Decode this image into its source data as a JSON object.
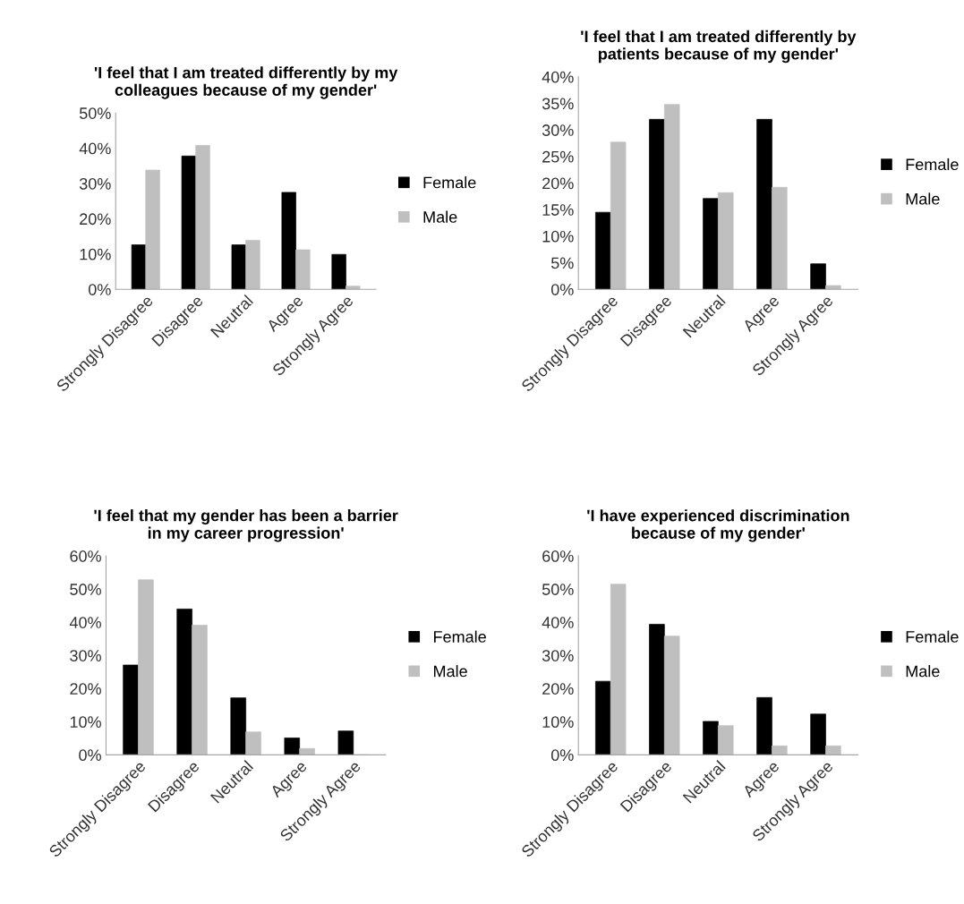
{
  "chart_data": [
    {
      "type": "bar",
      "title": "'I feel that I am treated differently by my colleagues because of my gender'",
      "categories": [
        "Strongly Disagree",
        "Disagree",
        "Neutral",
        "Agree",
        "Strongly Agree"
      ],
      "series": [
        {
          "name": "Female",
          "color": "#000000",
          "values": [
            12.6,
            37.8,
            12.6,
            27.5,
            9.9
          ]
        },
        {
          "name": "Male",
          "color": "#bfbfbf",
          "values": [
            33.8,
            40.8,
            13.9,
            11.2,
            0.9
          ]
        }
      ],
      "ylim": [
        0,
        50
      ],
      "yticks": [
        {
          "value": 0,
          "label": "0%"
        },
        {
          "value": 10,
          "label": "10%"
        },
        {
          "value": 20,
          "label": "20%"
        },
        {
          "value": 30,
          "label": "30%"
        },
        {
          "value": 40,
          "label": "40%"
        },
        {
          "value": 50,
          "label": "50%"
        }
      ],
      "grid": false,
      "legend": "right"
    },
    {
      "type": "bar",
      "title": "'I feel that I am treated differently by patients because of my gender'",
      "categories": [
        "Strongly Disagree",
        "Disagree",
        "Neutral",
        "Agree",
        "Strongly Agree"
      ],
      "series": [
        {
          "name": "Female",
          "color": "#000000",
          "values": [
            14.5,
            32.0,
            17.1,
            32.0,
            4.8
          ]
        },
        {
          "name": "Male",
          "color": "#bfbfbf",
          "values": [
            27.7,
            34.8,
            18.2,
            19.2,
            0.7
          ]
        }
      ],
      "ylim": [
        0,
        40
      ],
      "yticks": [
        {
          "value": 0,
          "label": "0%"
        },
        {
          "value": 5,
          "label": "5%"
        },
        {
          "value": 10,
          "label": "10%"
        },
        {
          "value": 15,
          "label": "15%"
        },
        {
          "value": 20,
          "label": "20%"
        },
        {
          "value": 25,
          "label": "25%"
        },
        {
          "value": 30,
          "label": "30%"
        },
        {
          "value": 35,
          "label": "35%"
        },
        {
          "value": 40,
          "label": "40%"
        }
      ],
      "grid": false,
      "legend": "right"
    },
    {
      "type": "bar",
      "title": "'I feel that my gender has been a barrier in my career progression'",
      "categories": [
        "Strongly Disagree",
        "Disagree",
        "Neutral",
        "Agree",
        "Strongly Agree"
      ],
      "series": [
        {
          "name": "Female",
          "color": "#000000",
          "values": [
            27.1,
            44.0,
            17.2,
            5.1,
            7.2
          ]
        },
        {
          "name": "Male",
          "color": "#bfbfbf",
          "values": [
            52.8,
            39.1,
            6.9,
            1.9,
            0
          ]
        }
      ],
      "ylim": [
        0,
        60
      ],
      "yticks": [
        {
          "value": 0,
          "label": "0%"
        },
        {
          "value": 10,
          "label": "10%"
        },
        {
          "value": 20,
          "label": "20%"
        },
        {
          "value": 30,
          "label": "30%"
        },
        {
          "value": 40,
          "label": "40%"
        },
        {
          "value": 50,
          "label": "50%"
        },
        {
          "value": 60,
          "label": "60%"
        }
      ],
      "grid": false,
      "legend": "right"
    },
    {
      "type": "bar",
      "title": "'I have experienced discrimination because of my gender'",
      "categories": [
        "Strongly Disagree",
        "Disagree",
        "Neutral",
        "Agree",
        "Strongly Agree"
      ],
      "series": [
        {
          "name": "Female",
          "color": "#000000",
          "values": [
            22.2,
            39.4,
            10.1,
            17.3,
            12.3
          ]
        },
        {
          "name": "Male",
          "color": "#bfbfbf",
          "values": [
            51.5,
            35.8,
            8.8,
            2.7,
            2.7
          ]
        }
      ],
      "ylim": [
        0,
        60
      ],
      "yticks": [
        {
          "value": 0,
          "label": "0%"
        },
        {
          "value": 10,
          "label": "10%"
        },
        {
          "value": 20,
          "label": "20%"
        },
        {
          "value": 30,
          "label": "30%"
        },
        {
          "value": 40,
          "label": "40%"
        },
        {
          "value": 50,
          "label": "50%"
        },
        {
          "value": 60,
          "label": "60%"
        }
      ],
      "grid": false,
      "legend": "right"
    }
  ]
}
